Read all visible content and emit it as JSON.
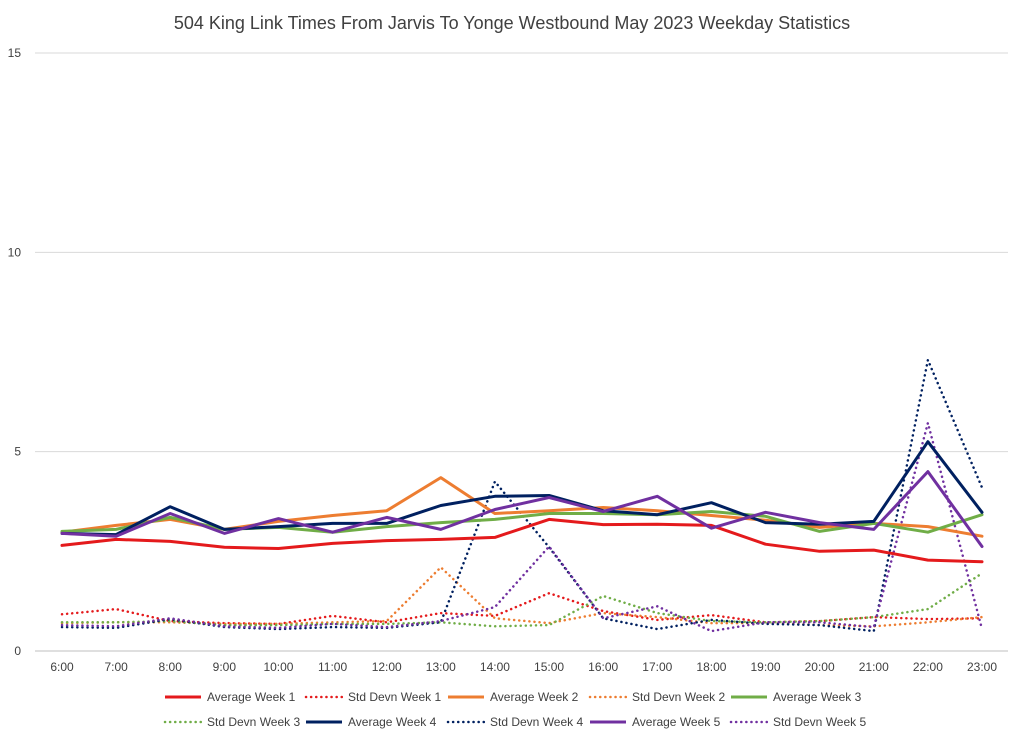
{
  "chart_data": {
    "type": "line",
    "title": "504 King Link Times From Jarvis To Yonge Westbound May 2023 Weekday Statistics",
    "xlabel": "",
    "ylabel": "",
    "ylim": [
      0,
      15
    ],
    "yticks": [
      "0",
      "5",
      "10",
      "15"
    ],
    "grid": true,
    "legend_position": "bottom",
    "categories": [
      "6:00",
      "7:00",
      "8:00",
      "9:00",
      "10:00",
      "11:00",
      "12:00",
      "13:00",
      "14:00",
      "15:00",
      "16:00",
      "17:00",
      "18:00",
      "19:00",
      "20:00",
      "21:00",
      "22:00",
      "23:00"
    ],
    "series": [
      {
        "name": "Average Week 1",
        "color": "#e41a1c",
        "style": "solid",
        "values": [
          2.65,
          2.8,
          2.75,
          2.6,
          2.57,
          2.7,
          2.77,
          2.8,
          2.85,
          3.3,
          3.17,
          3.18,
          3.15,
          2.68,
          2.5,
          2.53,
          2.28,
          2.24
        ]
      },
      {
        "name": "Std Devn Week 1",
        "color": "#e41a1c",
        "style": "dotted",
        "values": [
          0.92,
          1.05,
          0.75,
          0.7,
          0.68,
          0.88,
          0.72,
          0.95,
          0.88,
          1.45,
          1.0,
          0.78,
          0.9,
          0.72,
          0.75,
          0.85,
          0.8,
          0.82
        ]
      },
      {
        "name": "Average Week 2",
        "color": "#ed7d31",
        "style": "solid",
        "values": [
          2.98,
          3.15,
          3.3,
          3.05,
          3.25,
          3.4,
          3.52,
          4.35,
          3.45,
          3.52,
          3.6,
          3.52,
          3.4,
          3.28,
          3.1,
          3.2,
          3.12,
          2.88
        ]
      },
      {
        "name": "Std Devn Week 2",
        "color": "#ed7d31",
        "style": "dotted",
        "values": [
          0.7,
          0.72,
          0.72,
          0.68,
          0.68,
          0.72,
          0.75,
          2.1,
          0.82,
          0.7,
          0.95,
          0.85,
          0.7,
          0.7,
          0.65,
          0.62,
          0.72,
          0.85
        ]
      },
      {
        "name": "Average Week 3",
        "color": "#70ad47",
        "style": "solid",
        "values": [
          3.0,
          3.05,
          3.35,
          3.05,
          3.1,
          2.98,
          3.12,
          3.22,
          3.3,
          3.45,
          3.45,
          3.42,
          3.5,
          3.38,
          3.0,
          3.2,
          2.98,
          3.42
        ]
      },
      {
        "name": "Std Devn Week 3",
        "color": "#70ad47",
        "style": "dotted",
        "values": [
          0.72,
          0.72,
          0.75,
          0.65,
          0.65,
          0.68,
          0.68,
          0.72,
          0.62,
          0.65,
          1.38,
          0.95,
          0.75,
          0.72,
          0.75,
          0.85,
          1.05,
          1.95
        ]
      },
      {
        "name": "Average Week 4",
        "color": "#002060",
        "style": "solid",
        "values": [
          2.95,
          2.92,
          3.62,
          3.05,
          3.12,
          3.2,
          3.2,
          3.65,
          3.88,
          3.9,
          3.52,
          3.42,
          3.72,
          3.22,
          3.18,
          3.25,
          5.25,
          3.48
        ]
      },
      {
        "name": "Std Devn Week 4",
        "color": "#002060",
        "style": "dotted",
        "values": [
          0.6,
          0.58,
          0.8,
          0.6,
          0.55,
          0.6,
          0.58,
          0.72,
          4.25,
          2.6,
          0.82,
          0.55,
          0.78,
          0.68,
          0.65,
          0.5,
          7.3,
          4.1
        ]
      },
      {
        "name": "Average Week 5",
        "color": "#7030a0",
        "style": "solid",
        "values": [
          2.95,
          2.88,
          3.45,
          2.95,
          3.32,
          2.98,
          3.35,
          3.05,
          3.55,
          3.85,
          3.5,
          3.88,
          3.08,
          3.48,
          3.22,
          3.05,
          4.5,
          2.62
        ]
      },
      {
        "name": "Std Devn Week 5",
        "color": "#7030a0",
        "style": "dotted",
        "values": [
          0.65,
          0.62,
          0.82,
          0.62,
          0.58,
          0.68,
          0.6,
          0.75,
          1.1,
          2.62,
          0.82,
          1.12,
          0.5,
          0.72,
          0.72,
          0.6,
          5.72,
          0.55
        ]
      }
    ]
  }
}
